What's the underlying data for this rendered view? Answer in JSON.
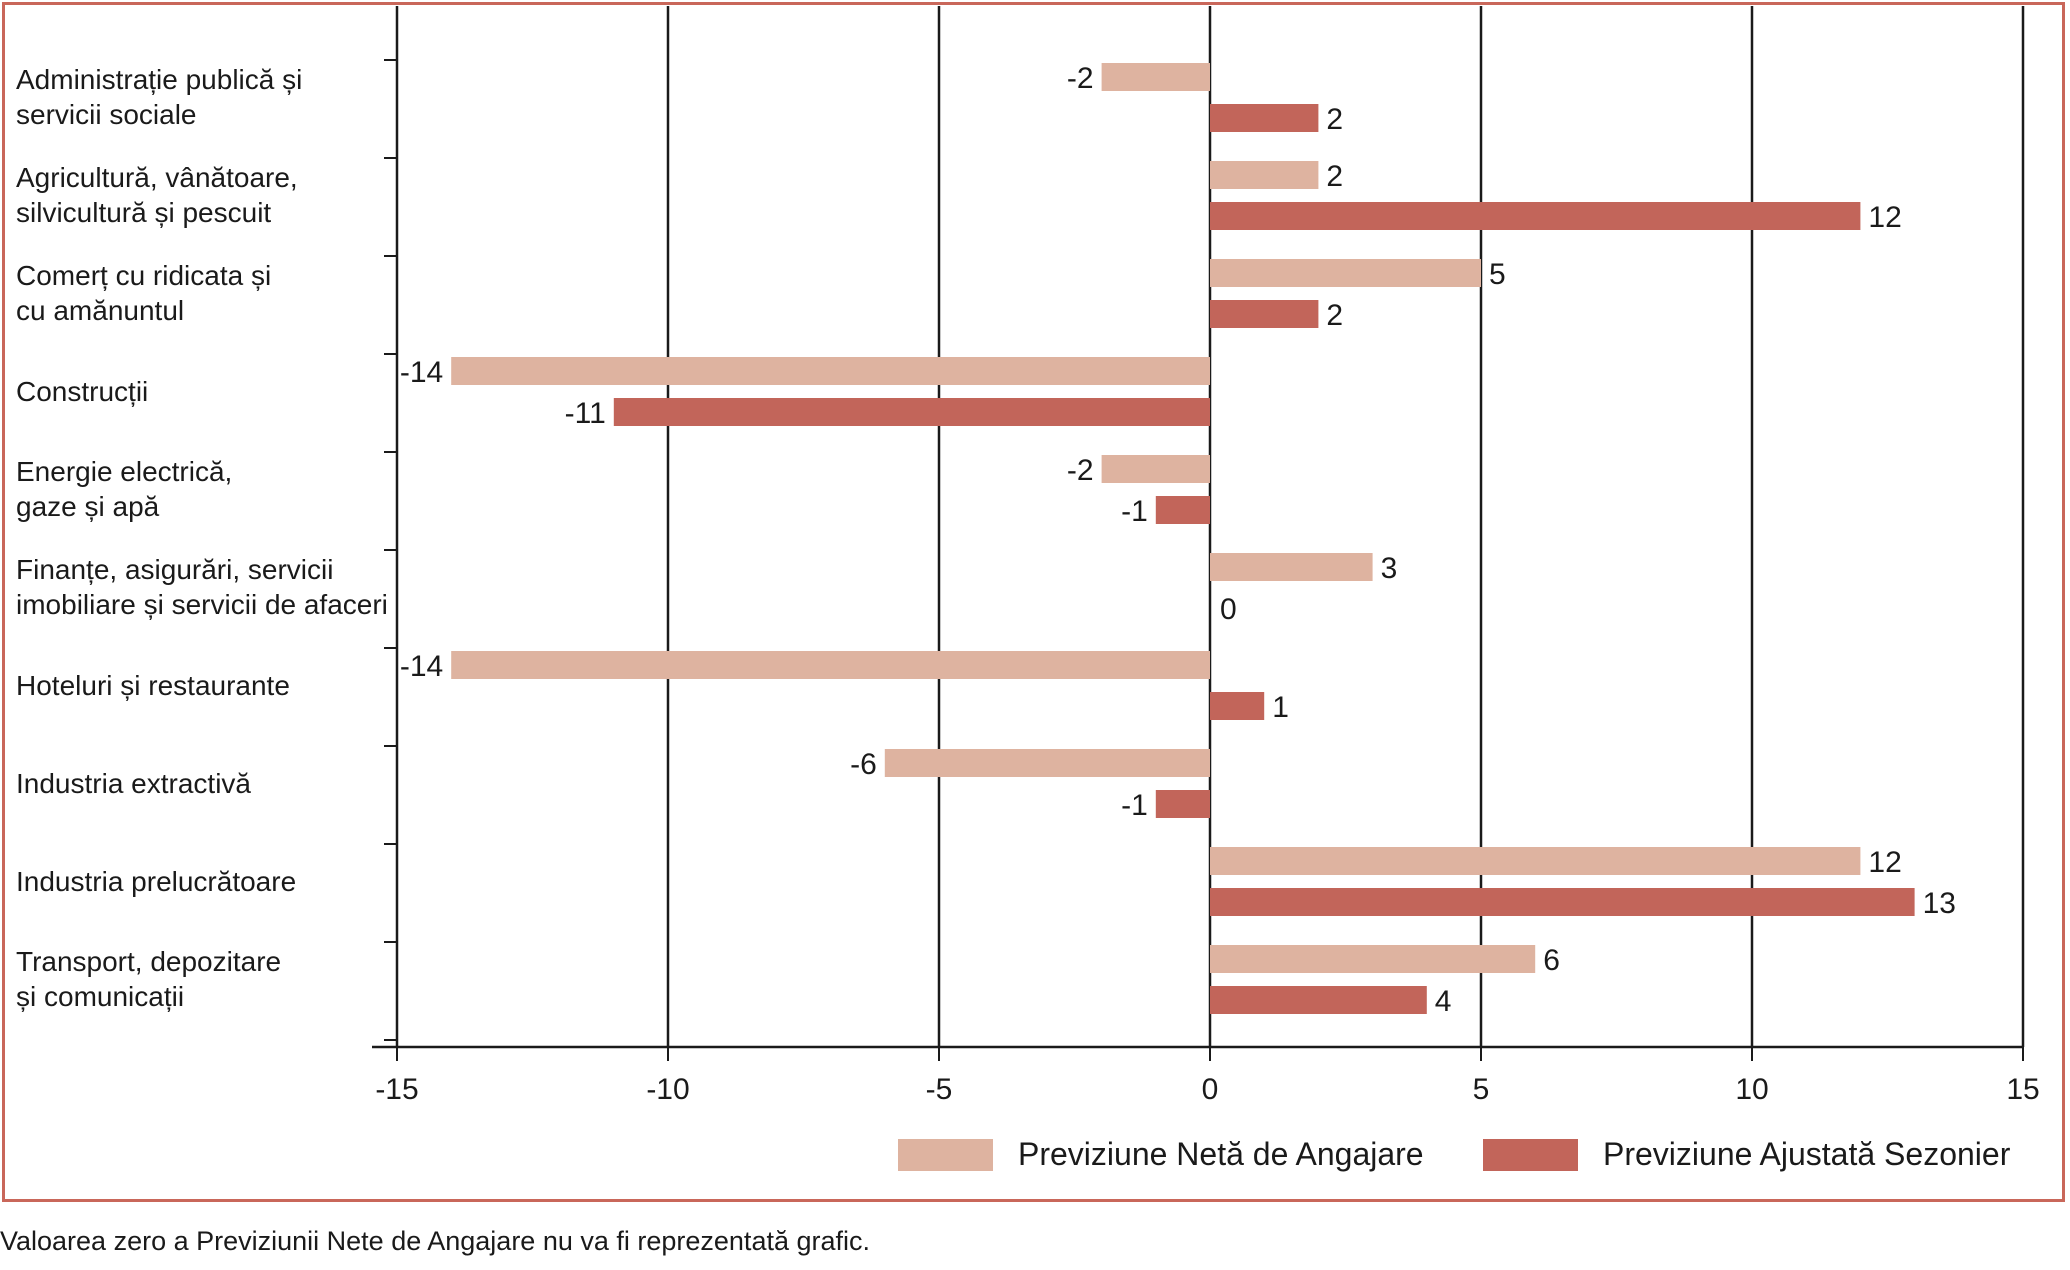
{
  "chart_data": {
    "type": "bar",
    "orientation": "horizontal",
    "categories": [
      "Administrație publică și\nservicii sociale",
      "Agricultură, vânătoare,\nsilvicultură și pescuit",
      "Comerț cu ridicata și\ncu amănuntul",
      "Construcții",
      "Energie electrică,\ngaze și apă",
      "Finanțe, asigurări, servicii\nimobiliare și servicii de afaceri",
      "Hoteluri și restaurante",
      "Industria extractivă",
      "Industria prelucrătoare",
      "Transport, depozitare\nși comunicații"
    ],
    "series": [
      {
        "name": "Previziune Netă de Angajare",
        "color": "#deb3a0",
        "values": [
          -2,
          2,
          5,
          -14,
          -2,
          3,
          -14,
          -6,
          12,
          6
        ]
      },
      {
        "name": "Previziune Ajustată Sezonier",
        "color": "#c2655a",
        "values": [
          2,
          12,
          2,
          -11,
          -1,
          0,
          1,
          -1,
          13,
          4
        ]
      }
    ],
    "xlim": [
      -15,
      15
    ],
    "xticks": [
      -15,
      -10,
      -5,
      0,
      5,
      10,
      15
    ],
    "grid": true,
    "legend_position": "bottom-right"
  },
  "footnote": "Valoarea zero a Previziunii Nete de Angajare nu va fi reprezentată grafic.",
  "colors": {
    "frame": "#c9675a",
    "grid": "#1a1a1a"
  }
}
